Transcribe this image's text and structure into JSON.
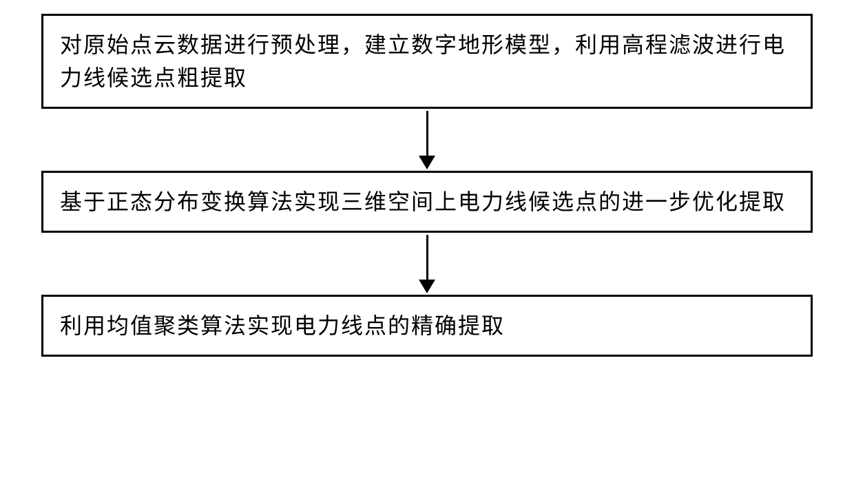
{
  "flowchart": {
    "type": "flowchart",
    "direction": "vertical",
    "background_color": "#ffffff",
    "box_border_color": "#000000",
    "box_border_width": 3,
    "arrow_color": "#000000",
    "arrow_line_width": 3,
    "text_color": "#000000",
    "font_size": 32,
    "font_family": "SimSun",
    "steps": [
      {
        "id": "step1",
        "text": "对原始点云数据进行预处理，建立数字地形模型，利用高程滤波进行电力线候选点粗提取"
      },
      {
        "id": "step2",
        "text": "基于正态分布变换算法实现三维空间上电力线候选点的进一步优化提取"
      },
      {
        "id": "step3",
        "text": "利用均值聚类算法实现电力线点的精确提取"
      }
    ],
    "edges": [
      {
        "from": "step1",
        "to": "step2"
      },
      {
        "from": "step2",
        "to": "step3"
      }
    ]
  }
}
